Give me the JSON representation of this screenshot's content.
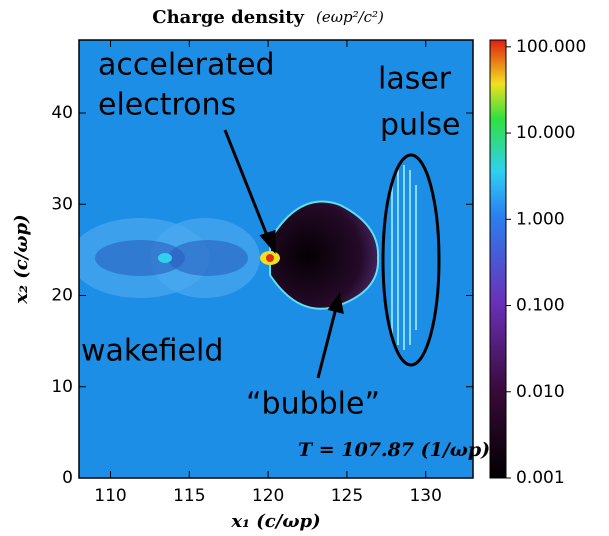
{
  "chart_data": {
    "type": "heatmap",
    "title": "Charge density",
    "colorbar_label": "(eωp²/c²)",
    "xlabel": "x₁ (c/ωp)",
    "ylabel": "x₂ (c/ωp)",
    "xlim": [
      108,
      133
    ],
    "xticks": [
      110,
      115,
      120,
      125,
      130
    ],
    "ylim": [
      0,
      48
    ],
    "yticks": [
      0,
      10,
      20,
      30,
      40
    ],
    "colorbar": {
      "scale": "log",
      "lim": [
        0.001,
        120
      ],
      "ticks": [
        {
          "value": 100,
          "label": "100.000"
        },
        {
          "value": 10,
          "label": "10.000"
        },
        {
          "value": 1,
          "label": "1.000"
        },
        {
          "value": 0.1,
          "label": "0.100"
        },
        {
          "value": 0.01,
          "label": "0.010"
        },
        {
          "value": 0.001,
          "label": "0.001"
        }
      ]
    },
    "annotations": [
      [
        "accelerated",
        "electrons"
      ],
      [
        "laser",
        "pulse"
      ],
      [
        "wakefield"
      ],
      [
        "“bubble”"
      ]
    ],
    "time_label": "T = 107.87 (1/ωp)"
  }
}
